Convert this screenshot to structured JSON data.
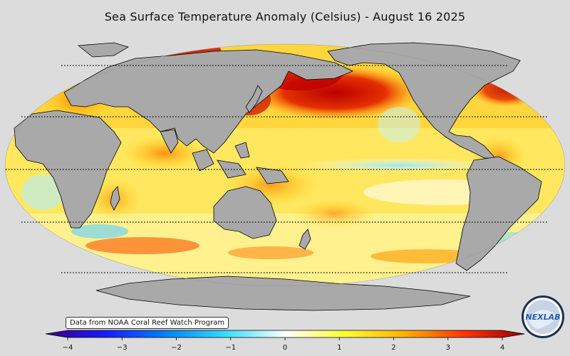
{
  "title": "Sea Surface Temperature Anomaly (Celsius) - August 16 2025",
  "source_note": "Data from NOAA Coral Reef Watch Program",
  "logo_text": "NEXLAB",
  "colorbar": {
    "min": -4,
    "max": 4,
    "ticks": [
      -4,
      -3,
      -2,
      -1,
      0,
      1,
      2,
      3,
      4
    ],
    "tick_labels": [
      "−4",
      "−3",
      "−2",
      "−1",
      "0",
      "1",
      "2",
      "3",
      "4"
    ],
    "colors": [
      "#3b0080",
      "#1a1aff",
      "#0080ff",
      "#33ddff",
      "#ffffff",
      "#ffff33",
      "#ffb000",
      "#ff3300",
      "#990000"
    ]
  },
  "map": {
    "projection": "Robinson (Pacific-centered)",
    "land_color": "#a9a9a9",
    "ocean_background": "#ffffff",
    "graticule_latitudes": [
      60,
      30,
      0,
      -30,
      -60
    ]
  }
}
